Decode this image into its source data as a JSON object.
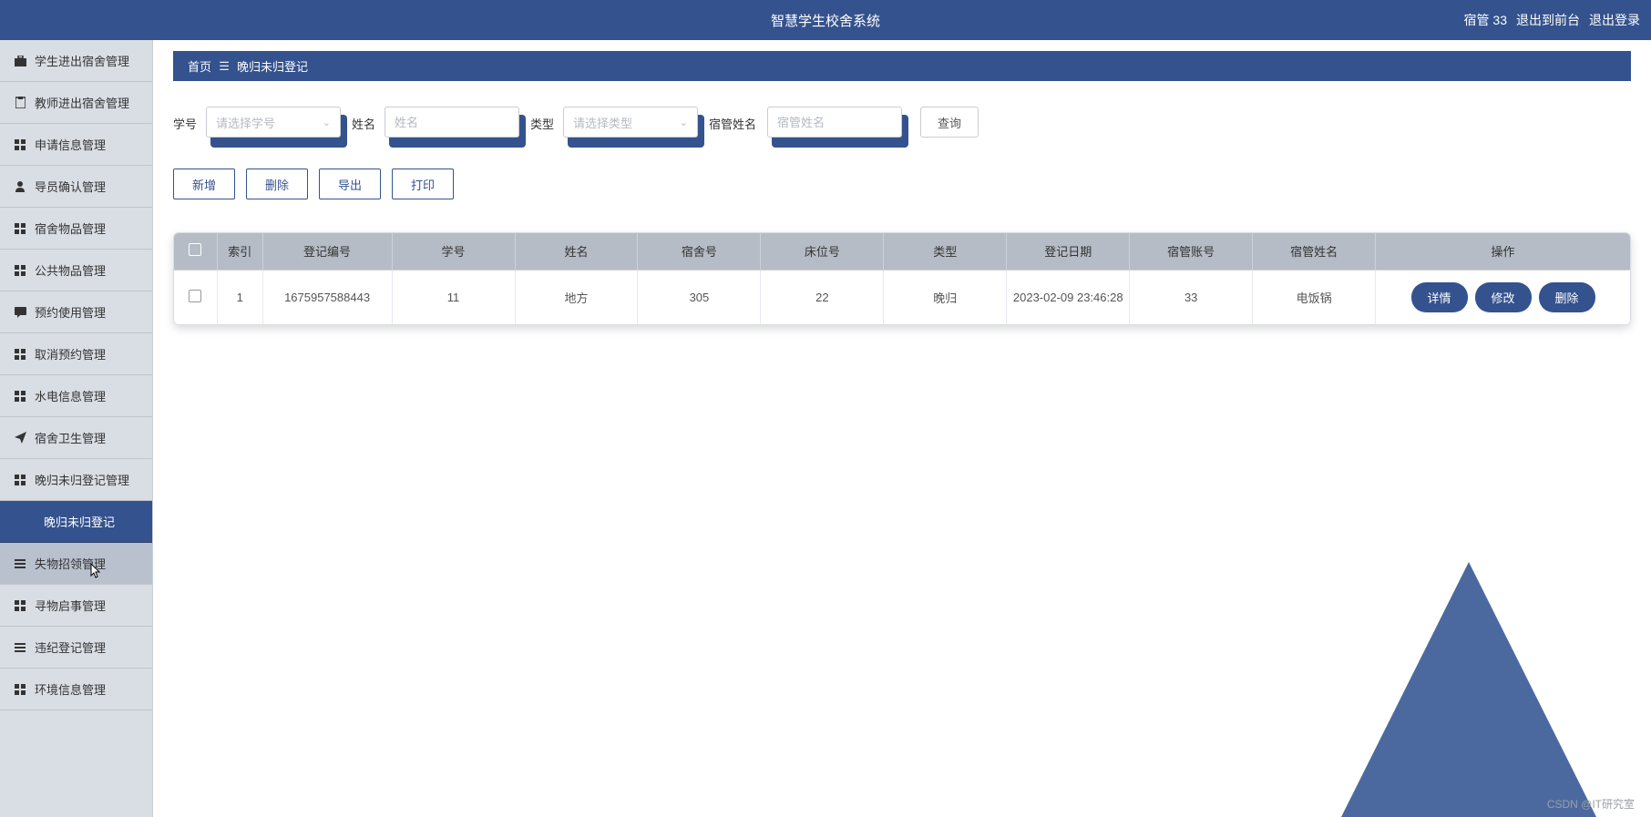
{
  "header": {
    "title": "智慧学生校舍系统",
    "right": {
      "user": "宿管 33",
      "front": "退出到前台",
      "logout": "退出登录"
    }
  },
  "sidebar": {
    "items": [
      {
        "label": "学生进出宿舍管理",
        "icon": "briefcase-icon"
      },
      {
        "label": "教师进出宿舍管理",
        "icon": "clipboard-icon"
      },
      {
        "label": "申请信息管理",
        "icon": "grid-icon"
      },
      {
        "label": "导员确认管理",
        "icon": "person-icon"
      },
      {
        "label": "宿舍物品管理",
        "icon": "grid-icon"
      },
      {
        "label": "公共物品管理",
        "icon": "grid-icon"
      },
      {
        "label": "预约使用管理",
        "icon": "chat-icon"
      },
      {
        "label": "取消预约管理",
        "icon": "grid-icon"
      },
      {
        "label": "水电信息管理",
        "icon": "grid-icon"
      },
      {
        "label": "宿舍卫生管理",
        "icon": "plane-icon"
      },
      {
        "label": "晚归未归登记管理",
        "icon": "grid-icon"
      },
      {
        "label": "晚归未归登记",
        "icon": "",
        "sub": true
      },
      {
        "label": "失物招领管理",
        "icon": "menu-icon",
        "hover": true
      },
      {
        "label": "寻物启事管理",
        "icon": "grid-icon"
      },
      {
        "label": "违纪登记管理",
        "icon": "menu-icon"
      },
      {
        "label": "环境信息管理",
        "icon": "grid-icon"
      }
    ]
  },
  "breadcrumb": {
    "home": "首页",
    "sep": "☰",
    "current": "晚归未归登记"
  },
  "search": {
    "student_id": {
      "label": "学号",
      "placeholder": "请选择学号"
    },
    "name": {
      "label": "姓名",
      "placeholder": "姓名"
    },
    "type": {
      "label": "类型",
      "placeholder": "请选择类型"
    },
    "mgr_name": {
      "label": "宿管姓名",
      "placeholder": "宿管姓名"
    },
    "query_btn": "查询"
  },
  "actions": {
    "add": "新增",
    "delete": "删除",
    "export": "导出",
    "print": "打印"
  },
  "table": {
    "columns": [
      "索引",
      "登记编号",
      "学号",
      "姓名",
      "宿舍号",
      "床位号",
      "类型",
      "登记日期",
      "宿管账号",
      "宿管姓名",
      "操作"
    ],
    "rows": [
      {
        "idx": "1",
        "reg": "1675957588443",
        "sid": "11",
        "name": "地方",
        "dorm": "305",
        "bed": "22",
        "type": "晚归",
        "date": "2023-02-09 23:46:28",
        "acc": "33",
        "mgr": "电饭锅"
      }
    ],
    "row_buttons": {
      "detail": "详情",
      "edit": "修改",
      "delete": "删除"
    }
  },
  "watermark": "CSDN @IT研究室",
  "colors": {
    "primary": "#34528e",
    "sidebar_bg": "#d9dee4",
    "thead_bg": "#b6bcc5",
    "triangle": "#42619a"
  }
}
